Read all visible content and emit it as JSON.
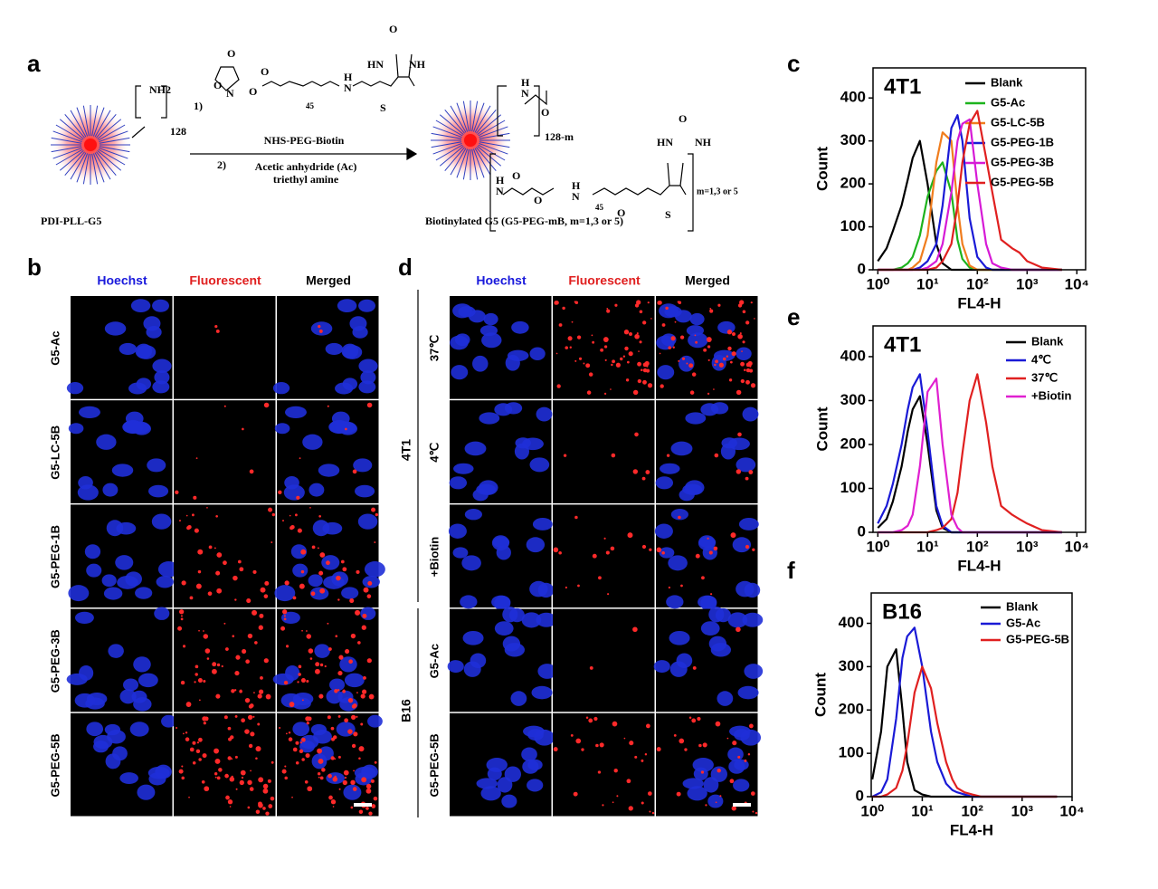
{
  "panel_labels": [
    "a",
    "b",
    "c",
    "d",
    "e",
    "f"
  ],
  "scheme": {
    "step_numbers": [
      "1)",
      "2)"
    ],
    "reagent_name": "NHS-PEG-Biotin",
    "conditions": [
      "Acetic anhydride (Ac)",
      "triethyl amine"
    ],
    "start_name": "PDI-PLL-G5",
    "start_group": "NH2",
    "start_count": "128",
    "product_name": "Biotinylated G5 (G5-PEG-mB, m=1,3 or 5)",
    "product_acetyl_count": "128-m",
    "peg_repeat": "45",
    "product_biotin_count": "m=1,3 or 5",
    "atoms": [
      "O",
      "N",
      "O",
      "O",
      "O",
      "H",
      "N",
      "HN",
      "NH",
      "O",
      "S",
      "H",
      "N",
      "O",
      "H",
      "N",
      "O",
      "O",
      "H",
      "N",
      "HN",
      "NH",
      "O",
      "S",
      "O"
    ]
  },
  "panel_b": {
    "columns": [
      "Hoechst",
      "Fluorescent",
      "Merged"
    ],
    "rows": [
      "G5-Ac",
      "G5-LC-5B",
      "G5-PEG-1B",
      "G5-PEG-3B",
      "G5-PEG-5B"
    ]
  },
  "panel_d": {
    "columns": [
      "Hoechst",
      "Fluorescent",
      "Merged"
    ],
    "groups": [
      {
        "name": "4T1",
        "rows": [
          "37℃",
          "4℃",
          "+Biotin"
        ]
      },
      {
        "name": "B16",
        "rows": [
          "G5-Ac",
          "G5-PEG-5B"
        ]
      }
    ]
  },
  "chart_data": [
    {
      "type": "line",
      "title": "4T1",
      "xlabel": "FL4-H",
      "ylabel": "Count",
      "log_x": true,
      "x": [
        1,
        1.5,
        2,
        3,
        4,
        5,
        7,
        10,
        15,
        20,
        30,
        40,
        50,
        70,
        100,
        150,
        200,
        300,
        500,
        700,
        1000,
        2000,
        5000
      ],
      "xlim": [
        0.8,
        15000
      ],
      "ylim": [
        0,
        470
      ],
      "xticks": [
        {
          "value": 1,
          "label": "10⁰"
        },
        {
          "value": 10,
          "label": "10¹"
        },
        {
          "value": 100,
          "label": "10²"
        },
        {
          "value": 1000,
          "label": "10³"
        },
        {
          "value": 10000,
          "label": "10⁴"
        }
      ],
      "yticks": [
        0,
        100,
        200,
        300,
        400
      ],
      "series": [
        {
          "name": "Blank",
          "color": "#000000",
          "values": [
            20,
            50,
            90,
            150,
            210,
            260,
            300,
            200,
            60,
            15,
            0,
            0,
            0,
            0,
            0,
            0,
            0,
            0,
            0,
            0,
            0,
            0,
            0
          ]
        },
        {
          "name": "G5-Ac",
          "color": "#1db31d",
          "values": [
            0,
            0,
            0,
            5,
            15,
            30,
            80,
            170,
            230,
            250,
            180,
            70,
            25,
            5,
            0,
            0,
            0,
            0,
            0,
            0,
            0,
            0,
            0
          ]
        },
        {
          "name": "G5-LC-5B",
          "color": "#f07d1e",
          "values": [
            0,
            0,
            0,
            0,
            0,
            5,
            20,
            80,
            250,
            320,
            300,
            150,
            60,
            10,
            0,
            0,
            0,
            0,
            0,
            0,
            0,
            0,
            0
          ]
        },
        {
          "name": "G5-PEG-1B",
          "color": "#1a1ad6",
          "values": [
            0,
            0,
            0,
            0,
            0,
            0,
            5,
            20,
            60,
            150,
            330,
            360,
            300,
            120,
            30,
            5,
            0,
            0,
            0,
            0,
            0,
            0,
            0
          ]
        },
        {
          "name": "G5-PEG-3B",
          "color": "#d61ad6",
          "values": [
            0,
            0,
            0,
            0,
            0,
            0,
            0,
            5,
            20,
            60,
            180,
            300,
            340,
            350,
            200,
            60,
            15,
            5,
            0,
            0,
            0,
            0,
            0
          ]
        },
        {
          "name": "G5-PEG-5B",
          "color": "#e02020",
          "values": [
            0,
            0,
            0,
            0,
            0,
            0,
            0,
            0,
            5,
            20,
            60,
            150,
            250,
            340,
            370,
            260,
            180,
            70,
            50,
            40,
            20,
            5,
            0
          ]
        }
      ]
    },
    {
      "type": "line",
      "title": "4T1",
      "xlabel": "FL4-H",
      "ylabel": "Count",
      "log_x": true,
      "x": [
        1,
        1.5,
        2,
        3,
        4,
        5,
        7,
        10,
        15,
        20,
        30,
        40,
        50,
        70,
        100,
        150,
        200,
        300,
        500,
        700,
        1000,
        2000,
        5000
      ],
      "xlim": [
        0.8,
        15000
      ],
      "ylim": [
        0,
        470
      ],
      "xticks": [
        {
          "value": 1,
          "label": "10⁰"
        },
        {
          "value": 10,
          "label": "10¹"
        },
        {
          "value": 100,
          "label": "10²"
        },
        {
          "value": 1000,
          "label": "10³"
        },
        {
          "value": 10000,
          "label": "10⁴"
        }
      ],
      "yticks": [
        0,
        100,
        200,
        300,
        400
      ],
      "series": [
        {
          "name": "Blank",
          "color": "#000000",
          "values": [
            10,
            30,
            70,
            150,
            230,
            280,
            310,
            200,
            50,
            10,
            0,
            0,
            0,
            0,
            0,
            0,
            0,
            0,
            0,
            0,
            0,
            0,
            0
          ]
        },
        {
          "name": "4℃",
          "color": "#1a1ad6",
          "values": [
            20,
            60,
            110,
            200,
            280,
            330,
            360,
            230,
            60,
            15,
            0,
            0,
            0,
            0,
            0,
            0,
            0,
            0,
            0,
            0,
            0,
            0,
            0
          ]
        },
        {
          "name": "37℃",
          "color": "#e02020",
          "values": [
            0,
            0,
            0,
            0,
            0,
            0,
            0,
            0,
            5,
            10,
            30,
            90,
            180,
            300,
            360,
            250,
            150,
            60,
            40,
            30,
            20,
            5,
            0
          ]
        },
        {
          "name": "+Biotin",
          "color": "#e020d0",
          "values": [
            0,
            0,
            0,
            5,
            15,
            40,
            150,
            320,
            350,
            200,
            40,
            10,
            0,
            0,
            0,
            0,
            0,
            0,
            0,
            0,
            0,
            0,
            0
          ]
        }
      ]
    },
    {
      "type": "line",
      "title": "B16",
      "xlabel": "FL4-H",
      "ylabel": "Count",
      "log_x": true,
      "x": [
        1,
        1.5,
        2,
        3,
        4,
        5,
        7,
        10,
        15,
        20,
        30,
        40,
        50,
        70,
        100,
        150,
        200,
        300,
        500,
        700,
        1000,
        2000,
        5000
      ],
      "xlim": [
        0.95,
        10000
      ],
      "ylim": [
        0,
        470
      ],
      "xticks": [
        {
          "value": 1,
          "label": "10⁰"
        },
        {
          "value": 10,
          "label": "10¹"
        },
        {
          "value": 100,
          "label": "10²"
        },
        {
          "value": 1000,
          "label": "10³"
        },
        {
          "value": 10000,
          "label": "10⁴"
        }
      ],
      "yticks": [
        0,
        100,
        200,
        300,
        400
      ],
      "series": [
        {
          "name": "Blank",
          "color": "#000000",
          "values": [
            40,
            150,
            300,
            340,
            200,
            80,
            15,
            5,
            0,
            0,
            0,
            0,
            0,
            0,
            0,
            0,
            0,
            0,
            0,
            0,
            0,
            0,
            0
          ]
        },
        {
          "name": "G5-Ac",
          "color": "#1a1ad6",
          "values": [
            0,
            10,
            40,
            180,
            320,
            370,
            390,
            300,
            150,
            80,
            30,
            15,
            10,
            5,
            0,
            0,
            0,
            0,
            0,
            0,
            0,
            0,
            0
          ]
        },
        {
          "name": "G5-PEG-5B",
          "color": "#e02020",
          "values": [
            0,
            0,
            5,
            20,
            60,
            120,
            240,
            300,
            250,
            170,
            80,
            40,
            20,
            10,
            5,
            0,
            0,
            0,
            0,
            0,
            0,
            0,
            0
          ]
        }
      ]
    }
  ]
}
